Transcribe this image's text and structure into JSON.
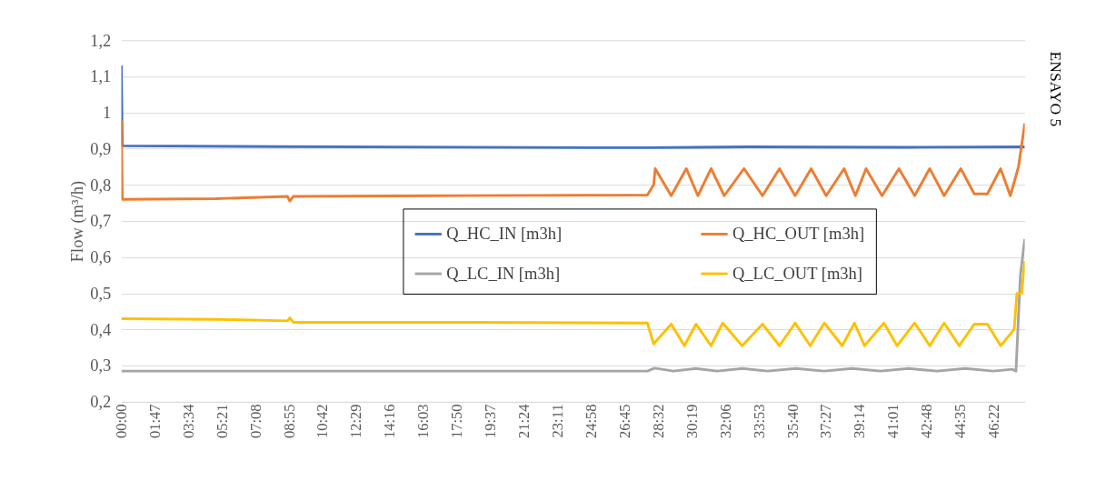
{
  "chart_data": {
    "type": "line",
    "title": "ENSAYO 5",
    "ylabel": "Flow (m³/h)",
    "xlim": [
      0,
      2880
    ],
    "ylim": [
      0.2,
      1.2
    ],
    "xticks": [
      {
        "value": 0,
        "label": "00:00"
      },
      {
        "value": 107,
        "label": "01:47"
      },
      {
        "value": 214,
        "label": "03:34"
      },
      {
        "value": 321,
        "label": "05:21"
      },
      {
        "value": 428,
        "label": "07:08"
      },
      {
        "value": 535,
        "label": "08:55"
      },
      {
        "value": 642,
        "label": "10:42"
      },
      {
        "value": 749,
        "label": "12:29"
      },
      {
        "value": 856,
        "label": "14:16"
      },
      {
        "value": 963,
        "label": "16:03"
      },
      {
        "value": 1070,
        "label": "17:50"
      },
      {
        "value": 1177,
        "label": "19:37"
      },
      {
        "value": 1284,
        "label": "21:24"
      },
      {
        "value": 1391,
        "label": "23:11"
      },
      {
        "value": 1498,
        "label": "24:58"
      },
      {
        "value": 1605,
        "label": "26:45"
      },
      {
        "value": 1712,
        "label": "28:32"
      },
      {
        "value": 1819,
        "label": "30:19"
      },
      {
        "value": 1926,
        "label": "32:06"
      },
      {
        "value": 2033,
        "label": "33:53"
      },
      {
        "value": 2140,
        "label": "35:40"
      },
      {
        "value": 2247,
        "label": "37:27"
      },
      {
        "value": 2354,
        "label": "39:14"
      },
      {
        "value": 2461,
        "label": "41:01"
      },
      {
        "value": 2568,
        "label": "42:48"
      },
      {
        "value": 2675,
        "label": "44:35"
      },
      {
        "value": 2782,
        "label": "46:22"
      }
    ],
    "yticks": [
      {
        "value": 0.2,
        "label": "0,2"
      },
      {
        "value": 0.3,
        "label": "0,3"
      },
      {
        "value": 0.4,
        "label": "0,4"
      },
      {
        "value": 0.5,
        "label": "0,5"
      },
      {
        "value": 0.6,
        "label": "0,6"
      },
      {
        "value": 0.7,
        "label": "0,7"
      },
      {
        "value": 0.8,
        "label": "0,8"
      },
      {
        "value": 0.9,
        "label": "0,9"
      },
      {
        "value": 1,
        "label": "1"
      },
      {
        "value": 1.1,
        "label": "1,1"
      },
      {
        "value": 1.2,
        "label": "1,2"
      }
    ],
    "grid": "y",
    "legend": "right",
    "marker": "none",
    "line_style": "solid",
    "series": [
      {
        "name": "Q_HC_IN [m3h]",
        "color": "#4472c4",
        "x": [
          0,
          3,
          500,
          1500,
          1677,
          2000,
          2500,
          2880
        ],
        "values": [
          1.13,
          0.908,
          0.906,
          0.903,
          0.903,
          0.905,
          0.904,
          0.905
        ]
      },
      {
        "name": "Q_HC_OUT [m3h]",
        "color": "#ed7d31",
        "x": [
          0,
          3,
          300,
          530,
          537,
          548,
          1000,
          1677,
          1697,
          1702,
          1753,
          1801,
          1838,
          1880,
          1922,
          1985,
          2044,
          2098,
          2148,
          2199,
          2247,
          2304,
          2340,
          2374,
          2425,
          2479,
          2529,
          2577,
          2623,
          2676,
          2719,
          2761,
          2803,
          2834,
          2860,
          2880
        ],
        "values": [
          0.98,
          0.76,
          0.762,
          0.768,
          0.755,
          0.768,
          0.77,
          0.772,
          0.8,
          0.845,
          0.77,
          0.845,
          0.77,
          0.845,
          0.77,
          0.845,
          0.77,
          0.845,
          0.77,
          0.845,
          0.77,
          0.845,
          0.77,
          0.845,
          0.77,
          0.845,
          0.77,
          0.845,
          0.77,
          0.845,
          0.775,
          0.775,
          0.845,
          0.77,
          0.85,
          0.97
        ]
      },
      {
        "name": "Q_LC_IN [m3h]",
        "color": "#a5a5a5",
        "x": [
          0,
          1677,
          1700,
          1760,
          1830,
          1900,
          1980,
          2060,
          2150,
          2240,
          2330,
          2420,
          2510,
          2600,
          2690,
          2780,
          2840,
          2852,
          2858,
          2866,
          2880
        ],
        "values": [
          0.285,
          0.285,
          0.293,
          0.285,
          0.292,
          0.285,
          0.292,
          0.285,
          0.292,
          0.285,
          0.292,
          0.285,
          0.292,
          0.285,
          0.292,
          0.285,
          0.29,
          0.285,
          0.4,
          0.55,
          0.65
        ]
      },
      {
        "name": "Q_LC_OUT [m3h]",
        "color": "#ffc000",
        "x": [
          0,
          300,
          530,
          537,
          548,
          1000,
          1677,
          1697,
          1753,
          1795,
          1832,
          1880,
          1917,
          1979,
          2044,
          2098,
          2148,
          2196,
          2241,
          2298,
          2337,
          2369,
          2431,
          2473,
          2529,
          2577,
          2623,
          2671,
          2719,
          2761,
          2803,
          2846,
          2855,
          2870,
          2880
        ],
        "values": [
          0.43,
          0.428,
          0.424,
          0.432,
          0.42,
          0.42,
          0.418,
          0.36,
          0.415,
          0.355,
          0.415,
          0.355,
          0.418,
          0.355,
          0.415,
          0.355,
          0.418,
          0.355,
          0.418,
          0.355,
          0.418,
          0.355,
          0.418,
          0.355,
          0.418,
          0.355,
          0.418,
          0.355,
          0.415,
          0.415,
          0.355,
          0.4,
          0.5,
          0.5,
          0.59
        ]
      }
    ]
  }
}
